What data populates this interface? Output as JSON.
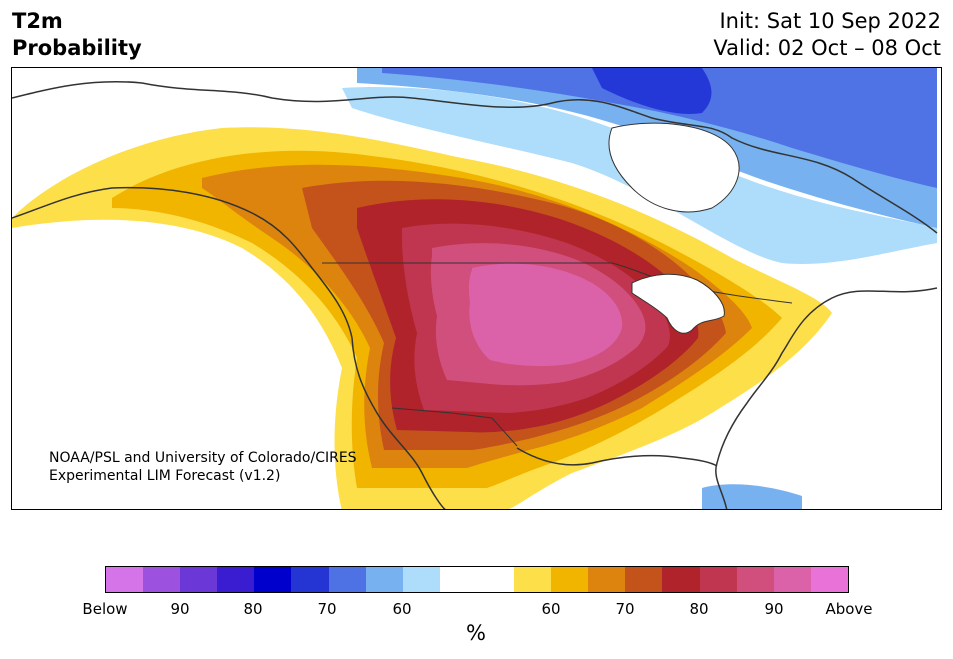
{
  "header": {
    "variable": "T2m",
    "measure": "Probability",
    "init": "Init: Sat 10 Sep 2022",
    "valid": "Valid: 02 Oct – 08 Oct"
  },
  "credit": {
    "line1": "NOAA/PSL and University of Colorado/CIRES",
    "line2": "Experimental LIM Forecast (v1.2)"
  },
  "colorbar": {
    "colors": [
      "#d474e8",
      "#9d52df",
      "#6b37d6",
      "#3a1dd0",
      "#0000cd",
      "#2435d4",
      "#4e71e4",
      "#77b1f0",
      "#aedcfb",
      "#ffffff",
      "#ffffff",
      "#fddf4a",
      "#f1b500",
      "#dd840e",
      "#c4521b",
      "#b0232a",
      "#c0354f",
      "#d04f7c",
      "#db62a8",
      "#e872d8"
    ],
    "tick_labels": [
      "Below",
      "90",
      "80",
      "70",
      "60",
      "60",
      "70",
      "80",
      "90",
      "Above"
    ],
    "unit": "%"
  },
  "map": {
    "region": "North America",
    "anomaly_center": "Central Plains",
    "colors": {
      "outline": "#333333",
      "cold_deep": "#2438d8",
      "cold_mid": "#4f73e4",
      "cold_light": "#77b1f0",
      "cold_pale": "#aedcfb",
      "warm_yellow": "#fddf4a",
      "warm_gold": "#f1b500",
      "warm_orange": "#dd840e",
      "warm_rust": "#c4521b",
      "warm_red": "#b0232a",
      "warm_crimson": "#c0354f",
      "warm_rose": "#d04f7c",
      "warm_pink": "#db62a8"
    }
  }
}
